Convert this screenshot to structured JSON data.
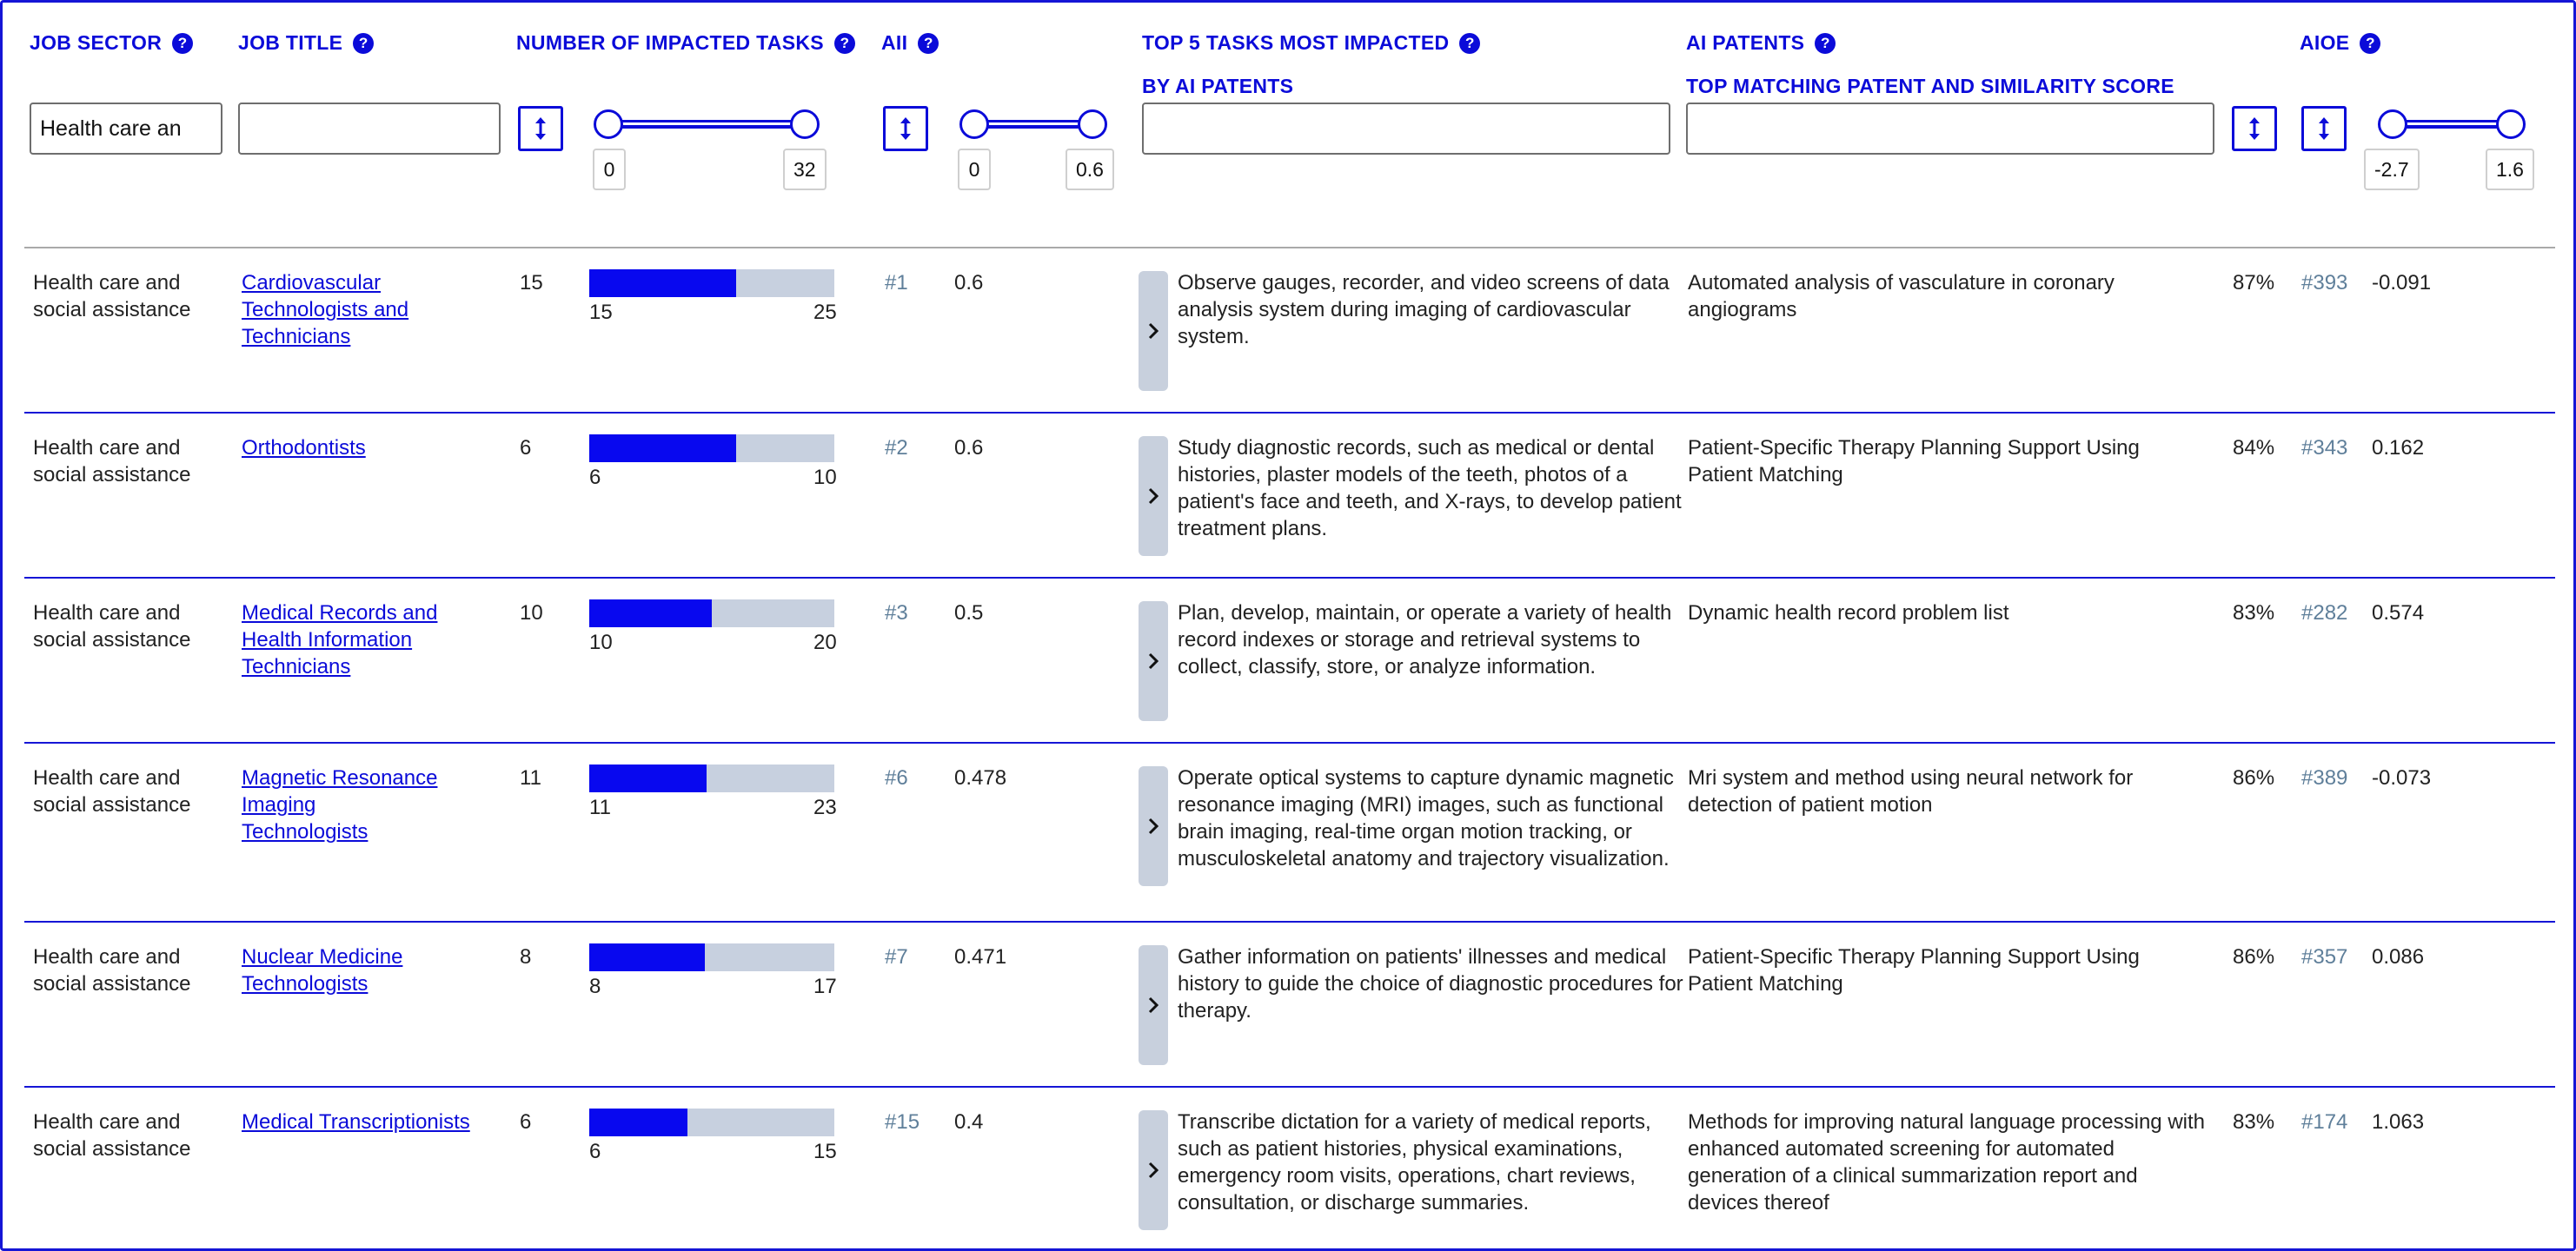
{
  "headers": {
    "job_sector": "JOB SECTOR",
    "job_title": "JOB TITLE",
    "num_tasks": "NUMBER OF IMPACTED TASKS",
    "aii": "AII",
    "top_tasks": "TOP 5 TASKS MOST IMPACTED",
    "top_tasks_sub": "BY AI PATENTS",
    "ai_patents": "AI PATENTS",
    "ai_patents_sub": "TOP MATCHING PATENT AND SIMILARITY SCORE",
    "aioe": "AIOE"
  },
  "filters": {
    "job_sector_value": "Health care an",
    "job_title_value": "",
    "tasks_value": "",
    "patents_value": "",
    "num_tasks_range": {
      "min": "0",
      "max": "32"
    },
    "aii_range": {
      "min": "0",
      "max": "0.6"
    },
    "aioe_range": {
      "min": "-2.7",
      "max": "1.6"
    }
  },
  "icons": {
    "help": "question-circle-icon",
    "sort": "sort-vertical-icon",
    "expand": "chevron-right-icon"
  },
  "colors": {
    "accent": "#0b0bd9",
    "progress_fill": "#0808ef",
    "progress_track": "#c7d0df",
    "rank": "#5f7f9a"
  },
  "rows": [
    {
      "sector": "Health care and social assistance",
      "title": "Cardiovascular Technologists and Technicians",
      "impacted": "15",
      "bar_min": "15",
      "bar_max": "25",
      "progress": 0.6,
      "rank": "#1",
      "aii": "0.6",
      "task": "Observe gauges, recorder, and video screens of data analysis system during imaging of cardiovascular system.",
      "patent": "Automated analysis of vasculature in coronary angiograms",
      "similarity": "87%",
      "aioe_rank": "#393",
      "aioe": "-0.091"
    },
    {
      "sector": "Health care and social assistance",
      "title": "Orthodontists",
      "impacted": "6",
      "bar_min": "6",
      "bar_max": "10",
      "progress": 0.6,
      "rank": "#2",
      "aii": "0.6",
      "task": "Study diagnostic records, such as medical or dental histories, plaster models of the teeth, photos of a patient's face and teeth, and X-rays, to develop patient treatment plans.",
      "patent": "Patient-Specific Therapy Planning Support Using Patient Matching",
      "similarity": "84%",
      "aioe_rank": "#343",
      "aioe": "0.162"
    },
    {
      "sector": "Health care and social assistance",
      "title": "Medical Records and Health Information Technicians",
      "impacted": "10",
      "bar_min": "10",
      "bar_max": "20",
      "progress": 0.5,
      "rank": "#3",
      "aii": "0.5",
      "task": "Plan, develop, maintain, or operate a variety of health record indexes or storage and retrieval systems to collect, classify, store, or analyze information.",
      "patent": "Dynamic health record problem list",
      "similarity": "83%",
      "aioe_rank": "#282",
      "aioe": "0.574"
    },
    {
      "sector": "Health care and social assistance",
      "title": "Magnetic Resonance Imaging Technologists",
      "impacted": "11",
      "bar_min": "11",
      "bar_max": "23",
      "progress": 0.478,
      "rank": "#6",
      "aii": "0.478",
      "task": "Operate optical systems to capture dynamic magnetic resonance imaging (MRI) images, such as functional brain imaging, real-time organ motion tracking, or musculoskeletal anatomy and trajectory visualization.",
      "patent": "Mri system and method using neural network for detection of patient motion",
      "similarity": "86%",
      "aioe_rank": "#389",
      "aioe": "-0.073"
    },
    {
      "sector": "Health care and social assistance",
      "title": "Nuclear Medicine Technologists",
      "impacted": "8",
      "bar_min": "8",
      "bar_max": "17",
      "progress": 0.471,
      "rank": "#7",
      "aii": "0.471",
      "task": "Gather information on patients' illnesses and medical history to guide the choice of diagnostic procedures for therapy.",
      "patent": "Patient-Specific Therapy Planning Support Using Patient Matching",
      "similarity": "86%",
      "aioe_rank": "#357",
      "aioe": "0.086"
    },
    {
      "sector": "Health care and social assistance",
      "title": "Medical Transcriptionists",
      "impacted": "6",
      "bar_min": "6",
      "bar_max": "15",
      "progress": 0.4,
      "rank": "#15",
      "aii": "0.4",
      "task": "Transcribe dictation for a variety of medical reports, such as patient histories, physical examinations, emergency room visits, operations, chart reviews, consultation, or discharge summaries.",
      "patent": "Methods for improving natural language processing with enhanced automated screening for automated generation of a clinical summarization report and devices thereof",
      "similarity": "83%",
      "aioe_rank": "#174",
      "aioe": "1.063"
    }
  ]
}
